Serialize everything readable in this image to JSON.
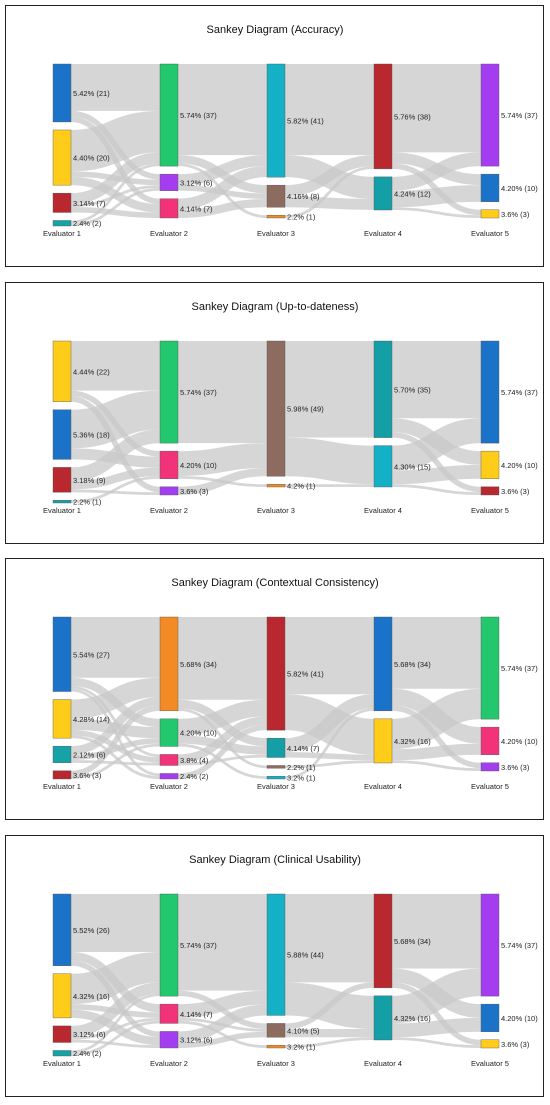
{
  "colors": {
    "link": "#c8c8c8",
    "blue": "#1a73c8",
    "yellow": "#ffcc1a",
    "red": "#b8282e",
    "teal": "#17a2a8",
    "green": "#22c76e",
    "purple": "#a43df0",
    "pink": "#f2337a",
    "cyan": "#14b0c6",
    "brown": "#8d6b5e",
    "orange": "#f28a26",
    "tealdark": "#149fa6"
  },
  "chart_data": [
    {
      "type": "sankey",
      "title": "Sankey Diagram (Accuracy)",
      "columns": [
        {
          "label": "Evaluator 1",
          "nodes": [
            {
              "label": "5.42% (21)",
              "value": 21,
              "color": "blue"
            },
            {
              "label": "4.40% (20)",
              "value": 20,
              "color": "yellow"
            },
            {
              "label": "3.14% (7)",
              "value": 7,
              "color": "red"
            },
            {
              "label": "2.4% (2)",
              "value": 2,
              "color": "teal"
            }
          ]
        },
        {
          "label": "Evaluator 2",
          "nodes": [
            {
              "label": "5.74% (37)",
              "value": 37,
              "color": "green"
            },
            {
              "label": "3.12% (6)",
              "value": 6,
              "color": "purple"
            },
            {
              "label": "4.14% (7)",
              "value": 7,
              "color": "pink"
            }
          ]
        },
        {
          "label": "Evaluator 3",
          "nodes": [
            {
              "label": "5.82% (41)",
              "value": 41,
              "color": "cyan"
            },
            {
              "label": "4.16% (8)",
              "value": 8,
              "color": "brown"
            },
            {
              "label": "2.2% (1)",
              "value": 1,
              "color": "orange"
            }
          ]
        },
        {
          "label": "Evaluator 4",
          "nodes": [
            {
              "label": "5.76% (38)",
              "value": 38,
              "color": "red"
            },
            {
              "label": "4.24% (12)",
              "value": 12,
              "color": "tealdark"
            }
          ]
        },
        {
          "label": "Evaluator 5",
          "nodes": [
            {
              "label": "5.74% (37)",
              "value": 37,
              "color": "purple"
            },
            {
              "label": "4.20% (10)",
              "value": 10,
              "color": "blue"
            },
            {
              "label": "3.6% (3)",
              "value": 3,
              "color": "yellow"
            }
          ]
        }
      ],
      "links": [
        [
          0,
          0,
          0,
          17
        ],
        [
          0,
          0,
          1,
          2
        ],
        [
          0,
          0,
          2,
          2
        ],
        [
          0,
          1,
          0,
          15
        ],
        [
          0,
          1,
          1,
          2
        ],
        [
          0,
          1,
          2,
          3
        ],
        [
          0,
          2,
          0,
          4
        ],
        [
          0,
          2,
          1,
          1
        ],
        [
          0,
          2,
          2,
          2
        ],
        [
          0,
          3,
          0,
          1
        ],
        [
          0,
          3,
          1,
          1
        ],
        [
          1,
          0,
          0,
          33
        ],
        [
          1,
          0,
          1,
          3
        ],
        [
          1,
          0,
          2,
          1
        ],
        [
          1,
          1,
          0,
          4
        ],
        [
          1,
          1,
          1,
          2
        ],
        [
          1,
          2,
          0,
          4
        ],
        [
          1,
          2,
          1,
          3
        ],
        [
          2,
          0,
          0,
          33
        ],
        [
          2,
          0,
          1,
          8
        ],
        [
          2,
          1,
          0,
          4
        ],
        [
          2,
          1,
          1,
          4
        ],
        [
          2,
          2,
          0,
          1
        ],
        [
          3,
          0,
          0,
          32
        ],
        [
          3,
          0,
          1,
          4
        ],
        [
          3,
          0,
          2,
          2
        ],
        [
          3,
          1,
          0,
          5
        ],
        [
          3,
          1,
          1,
          6
        ],
        [
          3,
          1,
          2,
          1
        ]
      ]
    },
    {
      "type": "sankey",
      "title": "Sankey Diagram (Up-to-dateness)",
      "columns": [
        {
          "label": "Evaluator 1",
          "nodes": [
            {
              "label": "4.44% (22)",
              "value": 22,
              "color": "yellow"
            },
            {
              "label": "5.36% (18)",
              "value": 18,
              "color": "blue"
            },
            {
              "label": "3.18% (9)",
              "value": 9,
              "color": "red"
            },
            {
              "label": "2.2% (1)",
              "value": 1,
              "color": "teal"
            }
          ]
        },
        {
          "label": "Evaluator 2",
          "nodes": [
            {
              "label": "5.74% (37)",
              "value": 37,
              "color": "green"
            },
            {
              "label": "4.20% (10)",
              "value": 10,
              "color": "pink"
            },
            {
              "label": "3.6% (3)",
              "value": 3,
              "color": "purple"
            }
          ]
        },
        {
          "label": "Evaluator 3",
          "nodes": [
            {
              "label": "5.98% (49)",
              "value": 49,
              "color": "brown"
            },
            {
              "label": "4.2% (1)",
              "value": 1,
              "color": "orange"
            }
          ]
        },
        {
          "label": "Evaluator 4",
          "nodes": [
            {
              "label": "5.70% (35)",
              "value": 35,
              "color": "tealdark"
            },
            {
              "label": "4.30% (15)",
              "value": 15,
              "color": "cyan"
            }
          ]
        },
        {
          "label": "Evaluator 5",
          "nodes": [
            {
              "label": "5.74% (37)",
              "value": 37,
              "color": "blue"
            },
            {
              "label": "4.20% (10)",
              "value": 10,
              "color": "yellow"
            },
            {
              "label": "3.6% (3)",
              "value": 3,
              "color": "red"
            }
          ]
        }
      ],
      "links": [
        [
          0,
          0,
          0,
          18
        ],
        [
          0,
          0,
          1,
          2
        ],
        [
          0,
          0,
          2,
          2
        ],
        [
          0,
          1,
          0,
          14
        ],
        [
          0,
          1,
          1,
          4
        ],
        [
          0,
          2,
          0,
          5
        ],
        [
          0,
          2,
          1,
          3
        ],
        [
          0,
          2,
          2,
          1
        ],
        [
          0,
          3,
          1,
          1
        ],
        [
          1,
          0,
          0,
          37
        ],
        [
          1,
          1,
          0,
          9
        ],
        [
          1,
          1,
          1,
          1
        ],
        [
          1,
          2,
          0,
          3
        ],
        [
          2,
          0,
          0,
          35
        ],
        [
          2,
          0,
          1,
          14
        ],
        [
          2,
          1,
          1,
          1
        ],
        [
          3,
          0,
          0,
          28
        ],
        [
          3,
          0,
          1,
          5
        ],
        [
          3,
          0,
          2,
          2
        ],
        [
          3,
          1,
          0,
          9
        ],
        [
          3,
          1,
          1,
          5
        ],
        [
          3,
          1,
          2,
          1
        ]
      ]
    },
    {
      "type": "sankey",
      "title": "Sankey Diagram (Contextual Consistency)",
      "columns": [
        {
          "label": "Evaluator 1",
          "nodes": [
            {
              "label": "5.54% (27)",
              "value": 27,
              "color": "blue"
            },
            {
              "label": "4.28% (14)",
              "value": 14,
              "color": "yellow"
            },
            {
              "label": "2.12% (6)",
              "value": 6,
              "color": "teal"
            },
            {
              "label": "3.6% (3)",
              "value": 3,
              "color": "red"
            }
          ]
        },
        {
          "label": "Evaluator 2",
          "nodes": [
            {
              "label": "5.68% (34)",
              "value": 34,
              "color": "orange"
            },
            {
              "label": "4.20% (10)",
              "value": 10,
              "color": "green"
            },
            {
              "label": "3.8% (4)",
              "value": 4,
              "color": "pink"
            },
            {
              "label": "2.4% (2)",
              "value": 2,
              "color": "purple"
            }
          ]
        },
        {
          "label": "Evaluator 3",
          "nodes": [
            {
              "label": "5.82% (41)",
              "value": 41,
              "color": "red"
            },
            {
              "label": "4.14% (7)",
              "value": 7,
              "color": "tealdark"
            },
            {
              "label": "2.2% (1)",
              "value": 1,
              "color": "brown"
            },
            {
              "label": "3.2% (1)",
              "value": 1,
              "color": "cyan"
            }
          ]
        },
        {
          "label": "Evaluator 4",
          "nodes": [
            {
              "label": "5.68% (34)",
              "value": 34,
              "color": "blue"
            },
            {
              "label": "4.32% (16)",
              "value": 16,
              "color": "yellow"
            }
          ]
        },
        {
          "label": "Evaluator 5",
          "nodes": [
            {
              "label": "5.74% (37)",
              "value": 37,
              "color": "green"
            },
            {
              "label": "4.20% (10)",
              "value": 10,
              "color": "pink"
            },
            {
              "label": "3.6% (3)",
              "value": 3,
              "color": "purple"
            }
          ]
        }
      ],
      "links": [
        [
          0,
          0,
          0,
          22
        ],
        [
          0,
          0,
          1,
          3
        ],
        [
          0,
          0,
          2,
          1
        ],
        [
          0,
          0,
          3,
          1
        ],
        [
          0,
          1,
          0,
          7
        ],
        [
          0,
          1,
          1,
          4
        ],
        [
          0,
          1,
          2,
          2
        ],
        [
          0,
          1,
          3,
          1
        ],
        [
          0,
          2,
          0,
          3
        ],
        [
          0,
          2,
          1,
          2
        ],
        [
          0,
          2,
          2,
          1
        ],
        [
          0,
          3,
          0,
          2
        ],
        [
          0,
          3,
          1,
          1
        ],
        [
          1,
          0,
          0,
          30
        ],
        [
          1,
          0,
          1,
          3
        ],
        [
          1,
          0,
          2,
          1
        ],
        [
          1,
          1,
          0,
          6
        ],
        [
          1,
          1,
          1,
          3
        ],
        [
          1,
          1,
          3,
          1
        ],
        [
          1,
          2,
          0,
          3
        ],
        [
          1,
          2,
          1,
          1
        ],
        [
          1,
          3,
          0,
          2
        ],
        [
          2,
          0,
          0,
          28
        ],
        [
          2,
          0,
          1,
          13
        ],
        [
          2,
          1,
          0,
          5
        ],
        [
          2,
          1,
          1,
          2
        ],
        [
          2,
          2,
          1,
          1
        ],
        [
          2,
          3,
          0,
          1
        ],
        [
          3,
          0,
          0,
          26
        ],
        [
          3,
          0,
          1,
          6
        ],
        [
          3,
          0,
          2,
          2
        ],
        [
          3,
          1,
          0,
          11
        ],
        [
          3,
          1,
          1,
          4
        ],
        [
          3,
          1,
          2,
          1
        ]
      ]
    },
    {
      "type": "sankey",
      "title": "Sankey Diagram (Clinical Usability)",
      "columns": [
        {
          "label": "Evaluator 1",
          "nodes": [
            {
              "label": "5.52% (26)",
              "value": 26,
              "color": "blue"
            },
            {
              "label": "4.32% (16)",
              "value": 16,
              "color": "yellow"
            },
            {
              "label": "3.12% (6)",
              "value": 6,
              "color": "red"
            },
            {
              "label": "2.4% (2)",
              "value": 2,
              "color": "teal"
            }
          ]
        },
        {
          "label": "Evaluator 2",
          "nodes": [
            {
              "label": "5.74% (37)",
              "value": 37,
              "color": "green"
            },
            {
              "label": "4.14% (7)",
              "value": 7,
              "color": "pink"
            },
            {
              "label": "3.12% (6)",
              "value": 6,
              "color": "purple"
            }
          ]
        },
        {
          "label": "Evaluator 3",
          "nodes": [
            {
              "label": "5.88% (44)",
              "value": 44,
              "color": "cyan"
            },
            {
              "label": "4.10% (5)",
              "value": 5,
              "color": "brown"
            },
            {
              "label": "3.2% (1)",
              "value": 1,
              "color": "orange"
            }
          ]
        },
        {
          "label": "Evaluator 4",
          "nodes": [
            {
              "label": "5.68% (34)",
              "value": 34,
              "color": "red"
            },
            {
              "label": "4.32% (16)",
              "value": 16,
              "color": "tealdark"
            }
          ]
        },
        {
          "label": "Evaluator 5",
          "nodes": [
            {
              "label": "5.74% (37)",
              "value": 37,
              "color": "purple"
            },
            {
              "label": "4.20% (10)",
              "value": 10,
              "color": "blue"
            },
            {
              "label": "3.6% (3)",
              "value": 3,
              "color": "yellow"
            }
          ]
        }
      ],
      "links": [
        [
          0,
          0,
          0,
          21
        ],
        [
          0,
          0,
          1,
          3
        ],
        [
          0,
          0,
          2,
          2
        ],
        [
          0,
          1,
          0,
          11
        ],
        [
          0,
          1,
          1,
          2
        ],
        [
          0,
          1,
          2,
          3
        ],
        [
          0,
          2,
          0,
          4
        ],
        [
          0,
          2,
          1,
          1
        ],
        [
          0,
          2,
          2,
          1
        ],
        [
          0,
          3,
          0,
          1
        ],
        [
          0,
          3,
          1,
          1
        ],
        [
          1,
          0,
          0,
          35
        ],
        [
          1,
          0,
          1,
          2
        ],
        [
          1,
          1,
          0,
          5
        ],
        [
          1,
          1,
          1,
          1
        ],
        [
          1,
          1,
          2,
          1
        ],
        [
          1,
          2,
          0,
          4
        ],
        [
          1,
          2,
          1,
          2
        ],
        [
          2,
          0,
          0,
          32
        ],
        [
          2,
          0,
          1,
          12
        ],
        [
          2,
          1,
          0,
          2
        ],
        [
          2,
          1,
          1,
          3
        ],
        [
          2,
          2,
          1,
          1
        ],
        [
          3,
          0,
          0,
          27
        ],
        [
          3,
          0,
          1,
          5
        ],
        [
          3,
          0,
          2,
          2
        ],
        [
          3,
          1,
          0,
          10
        ],
        [
          3,
          1,
          1,
          5
        ],
        [
          3,
          1,
          2,
          1
        ]
      ]
    }
  ]
}
